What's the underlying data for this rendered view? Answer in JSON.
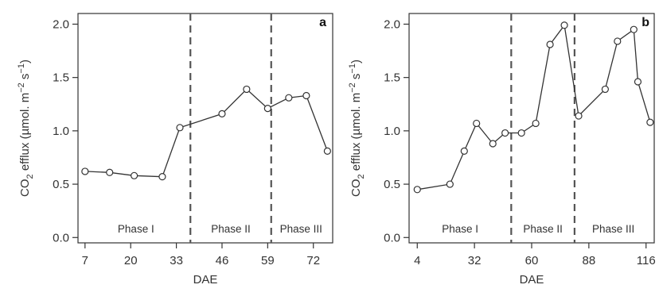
{
  "chart_data": [
    {
      "type": "line",
      "panel_letter": "a",
      "xlabel": "DAE",
      "ylabel": "CO2 efflux (µmol. m−2 s−1)",
      "ylabel_parts": {
        "pre": "CO",
        "sub": "2",
        "mid": " efflux (µmol. m",
        "sup1": "−2",
        "mid2": " s",
        "sup2": "−1",
        "post": ")"
      },
      "xlim": [
        5,
        77.5
      ],
      "ylim": [
        -0.05,
        2.1
      ],
      "x_ticks": [
        7,
        20,
        33,
        46,
        59,
        72
      ],
      "y_ticks": [
        0.0,
        0.5,
        1.0,
        1.5,
        2.0
      ],
      "y_tick_labels": [
        "0.0",
        "0.5",
        "1.0",
        "1.5",
        "2.0"
      ],
      "marker": "open-circle",
      "grid": false,
      "series": [
        {
          "x": [
            7,
            14,
            21,
            29,
            34,
            46,
            53,
            59,
            65,
            70,
            76
          ],
          "y": [
            0.62,
            0.61,
            0.58,
            0.57,
            1.03,
            1.16,
            1.39,
            1.21,
            1.31,
            1.33,
            0.81
          ]
        }
      ],
      "phase_boundaries": [
        37,
        60
      ],
      "phases": [
        {
          "label": "Phase I",
          "x": 21.5
        },
        {
          "label": "Phase II",
          "x": 48.5
        },
        {
          "label": "Phase III",
          "x": 68.5
        }
      ]
    },
    {
      "type": "line",
      "panel_letter": "b",
      "xlabel": "DAE",
      "ylabel": "CO2 efflux (µmol. m−2 s−1)",
      "ylabel_parts": {
        "pre": "CO",
        "sub": "2",
        "mid": " efflux (µmol. m",
        "sup1": "−2",
        "mid2": " s",
        "sup2": "−1",
        "post": ")"
      },
      "xlim": [
        0,
        120
      ],
      "ylim": [
        -0.05,
        2.1
      ],
      "x_ticks": [
        4,
        32,
        60,
        88,
        116
      ],
      "y_ticks": [
        0.0,
        0.5,
        1.0,
        1.5,
        2.0
      ],
      "y_tick_labels": [
        "0.0",
        "0.5",
        "1.0",
        "1.5",
        "2.0"
      ],
      "marker": "open-circle",
      "grid": false,
      "series": [
        {
          "x": [
            4,
            20,
            27,
            33,
            41,
            47,
            55,
            62,
            69,
            76,
            83,
            96,
            102,
            110,
            112,
            118
          ],
          "y": [
            0.45,
            0.5,
            0.81,
            1.07,
            0.88,
            0.98,
            0.98,
            1.07,
            1.81,
            1.99,
            1.14,
            1.39,
            1.84,
            1.95,
            1.46,
            1.08
          ]
        }
      ],
      "phase_boundaries": [
        50,
        81
      ],
      "phases": [
        {
          "label": "Phase I",
          "x": 25
        },
        {
          "label": "Phase II",
          "x": 65.5
        },
        {
          "label": "Phase III",
          "x": 100
        }
      ]
    }
  ]
}
